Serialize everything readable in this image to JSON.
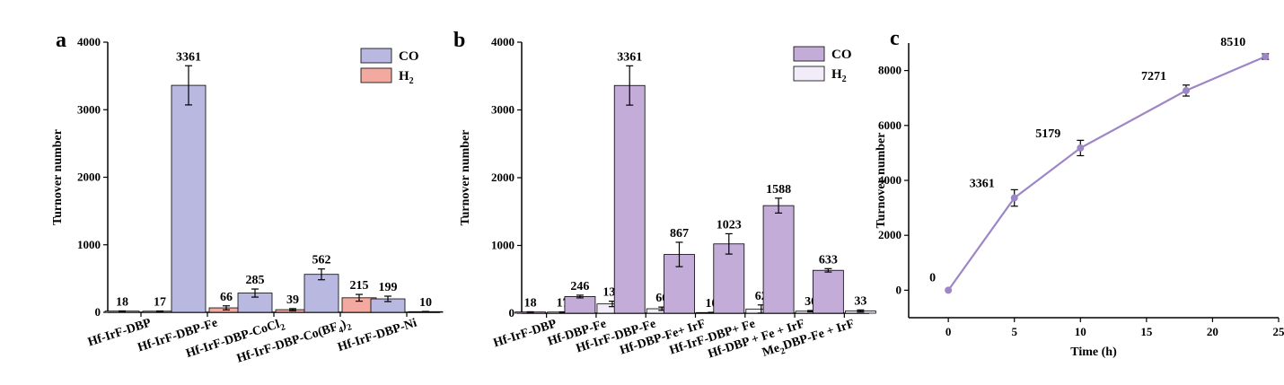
{
  "chart_data": [
    {
      "panel": "a",
      "type": "bar",
      "ylabel": "Turnover number",
      "ylim": [
        0,
        4000
      ],
      "yticks": [
        0,
        1000,
        2000,
        3000,
        4000
      ],
      "categories": [
        "Hf-IrF-DBP",
        "Hf-IrF-DBP-Fe",
        "Hf-IrF-DBP-CoCl",
        "Hf-IrF-DBP-Co(BF",
        "Hf-IrF-DBP-Ni"
      ],
      "category_suffix": [
        "",
        "",
        "2",
        "4)2",
        ""
      ],
      "series": [
        {
          "name": "CO",
          "color": "#b8b8e0",
          "values": [
            18,
            3361,
            285,
            562,
            199
          ],
          "errors": [
            3,
            290,
            60,
            80,
            40
          ]
        },
        {
          "name": "H2",
          "color": "#f2a9a0",
          "values": [
            17,
            66,
            39,
            215,
            10
          ],
          "errors": [
            3,
            30,
            15,
            50,
            3
          ]
        }
      ],
      "legend": [
        "CO",
        "H",
        "2"
      ],
      "legend_position": "top-right"
    },
    {
      "panel": "b",
      "type": "bar",
      "ylabel": "Turnover number",
      "ylim": [
        0,
        4000
      ],
      "yticks": [
        0,
        1000,
        2000,
        3000,
        4000
      ],
      "categories": [
        "Hf-IrF-DBP",
        "Hf-DBP-Fe",
        "Hf-IrF-DBP-Fe",
        "Hf-DBP-Fe+ IrF",
        "Hf-IrF-DBP+ Fe",
        "Hf-DBP + Fe + IrF",
        "DBP-Fe + IrF"
      ],
      "category_prefix": [
        "",
        "",
        "",
        "",
        "",
        "",
        "Me"
      ],
      "category_prefix_sub": [
        "",
        "",
        "",
        "",
        "",
        "",
        "2"
      ],
      "series": [
        {
          "name": "CO",
          "color": "#c4acd8",
          "values": [
            18,
            246,
            3361,
            867,
            1023,
            1588,
            633
          ],
          "errors": [
            3,
            20,
            290,
            180,
            150,
            110,
            25
          ]
        },
        {
          "name": "H2",
          "color": "#f1ecf8",
          "values": [
            17,
            137,
            66,
            10,
            62,
            30,
            33
          ],
          "errors": [
            3,
            40,
            25,
            3,
            60,
            10,
            15
          ]
        }
      ],
      "legend": [
        "CO",
        "H",
        "2"
      ],
      "legend_position": "top-right"
    },
    {
      "panel": "c",
      "type": "line",
      "xlabel": "Time (h)",
      "ylabel": "Turnover number",
      "xlim": [
        -3,
        25
      ],
      "ylim": [
        -1000,
        9000
      ],
      "xticks": [
        0,
        5,
        10,
        15,
        20,
        25
      ],
      "yticks": [
        0,
        2000,
        4000,
        6000,
        8000
      ],
      "color": "#9d86c6",
      "x": [
        0,
        5,
        10,
        18,
        24
      ],
      "y": [
        0,
        3361,
        5179,
        7271,
        8510
      ],
      "errors": [
        0,
        300,
        280,
        200,
        100
      ],
      "labels": [
        "0",
        "3361",
        "5179",
        "7271",
        "8510"
      ]
    }
  ]
}
